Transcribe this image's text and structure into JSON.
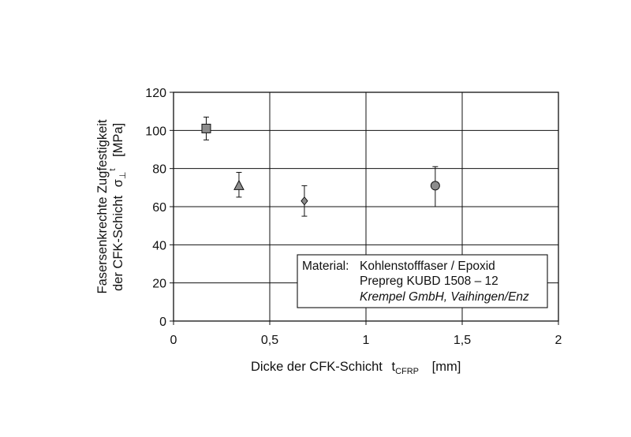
{
  "chart_data": {
    "type": "scatter",
    "title": "",
    "xlabel": {
      "text": "Dicke der CFK-Schicht",
      "symbol": "t",
      "subscript": "CFRP",
      "unit": "[mm]"
    },
    "ylabel": {
      "line1": "Fasersenkrechte Zugfestigkeit",
      "line2_text": "der CFK-Schicht",
      "symbol": "σ",
      "superscript": "t",
      "subscript": "⊥",
      "unit": "[MPa]"
    },
    "xlim": [
      0,
      2
    ],
    "ylim": [
      0,
      120
    ],
    "x_ticks": [
      0,
      0.5,
      1,
      1.5,
      2
    ],
    "x_tick_labels": [
      "0",
      "0,5",
      "1",
      "1,5",
      "2"
    ],
    "y_ticks": [
      0,
      20,
      40,
      60,
      80,
      100,
      120
    ],
    "y_tick_labels": [
      "0",
      "20",
      "40",
      "60",
      "80",
      "100",
      "120"
    ],
    "grid": true,
    "points": [
      {
        "marker": "square",
        "x": 0.17,
        "y": 101,
        "err_low": 95,
        "err_high": 107
      },
      {
        "marker": "triangle",
        "x": 0.34,
        "y": 71,
        "err_low": 65,
        "err_high": 78
      },
      {
        "marker": "diamond",
        "x": 0.68,
        "y": 63,
        "err_low": 55,
        "err_high": 71
      },
      {
        "marker": "circle",
        "x": 1.36,
        "y": 71,
        "err_low": 60,
        "err_high": 81
      }
    ],
    "marker_fill": "#8c8c8c",
    "legend": {
      "placement": "bottom-right",
      "label": "Material:",
      "lines": [
        "Kohlenstofffaser / Epoxid",
        "Prepreg KUBD 1508 – 12",
        "Krempel GmbH, Vaihingen/Enz"
      ]
    }
  }
}
